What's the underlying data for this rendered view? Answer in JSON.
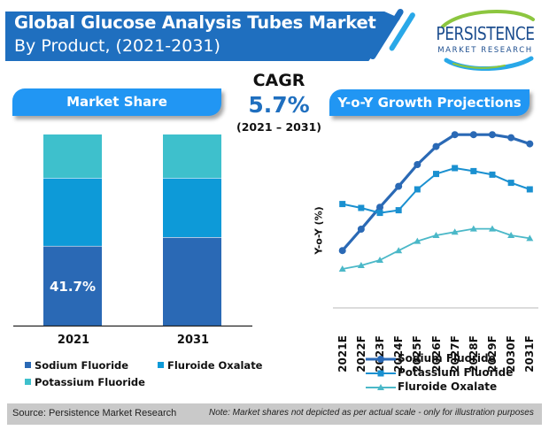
{
  "header": {
    "title_line1": "Global Glucose Analysis Tubes Market",
    "title_line2": "By Product, (2021-2031)",
    "brand_color": "#1f6fbf"
  },
  "logo": {
    "name": "PERSISTENCE",
    "subtitle": "MARKET RESEARCH"
  },
  "panels": {
    "market_share_title": "Market Share",
    "yoy_title": "Y-o-Y Growth Projections"
  },
  "cagr": {
    "label": "CAGR",
    "value": "5.7%",
    "period": "(2021 – 2031)"
  },
  "footer": {
    "source": "Source: Persistence Market Research",
    "note": "Note: Market shares not depicted as per actual scale - only for illustration purposes"
  },
  "chart_data": [
    {
      "type": "bar",
      "stacked": true,
      "title": "Market Share",
      "categories": [
        "2021",
        "2031"
      ],
      "series": [
        {
          "name": "Sodium Fluoride",
          "color": "#2a69b5",
          "values": [
            41.7,
            46.3
          ]
        },
        {
          "name": "Fluroide Oxalate",
          "color": "#0d9ad8",
          "values": [
            35.6,
            31.0
          ]
        },
        {
          "name": "Potassium Fluoride",
          "color": "#3ec0cc",
          "values": [
            22.7,
            22.7
          ]
        }
      ],
      "data_labels": [
        {
          "series": "Sodium Fluoride",
          "category": "2021",
          "text": "41.7%"
        }
      ],
      "ylim": [
        0,
        100
      ],
      "legend": {
        "position": "bottom",
        "entries": [
          "Sodium Fluoride",
          "Fluroide Oxalate",
          "Potassium Fluoride"
        ]
      },
      "note": "Market shares not depicted as per actual scale"
    },
    {
      "type": "line",
      "title": "Y-o-Y Growth Projections",
      "xlabel": "",
      "ylabel": "Y-o-Y (%)",
      "x": [
        "2021E",
        "2022F",
        "2023F",
        "2024F",
        "2025F",
        "2026F",
        "2027F",
        "2028F",
        "2029F",
        "2030F",
        "2031F"
      ],
      "ylim": [
        0,
        100
      ],
      "y_units": "relative (no numeric axis shown)",
      "grid": false,
      "series": [
        {
          "name": "Sodium Fluoride",
          "marker": "circle",
          "color": "#2a69b5",
          "values": [
            28.4,
            40.5,
            52.9,
            64.7,
            77.0,
            87.2,
            93.9,
            93.9,
            93.9,
            92.2,
            88.7
          ]
        },
        {
          "name": "Potassium Fluoride",
          "marker": "square",
          "color": "#1a90d0",
          "values": [
            54.7,
            52.5,
            49.7,
            51.2,
            63.0,
            71.7,
            75.0,
            73.3,
            71.3,
            66.7,
            63.0
          ]
        },
        {
          "name": "Fluroide Oxalate",
          "marker": "triangle",
          "color": "#4bb8c8",
          "values": [
            18.0,
            20.0,
            23.0,
            28.4,
            33.7,
            37.0,
            38.9,
            40.7,
            40.7,
            37.0,
            35.3
          ]
        }
      ],
      "legend": {
        "position": "bottom",
        "entries": [
          "Sodium Fluoride",
          "Potassium Fluoride",
          "Fluroide Oxalate"
        ]
      }
    }
  ]
}
